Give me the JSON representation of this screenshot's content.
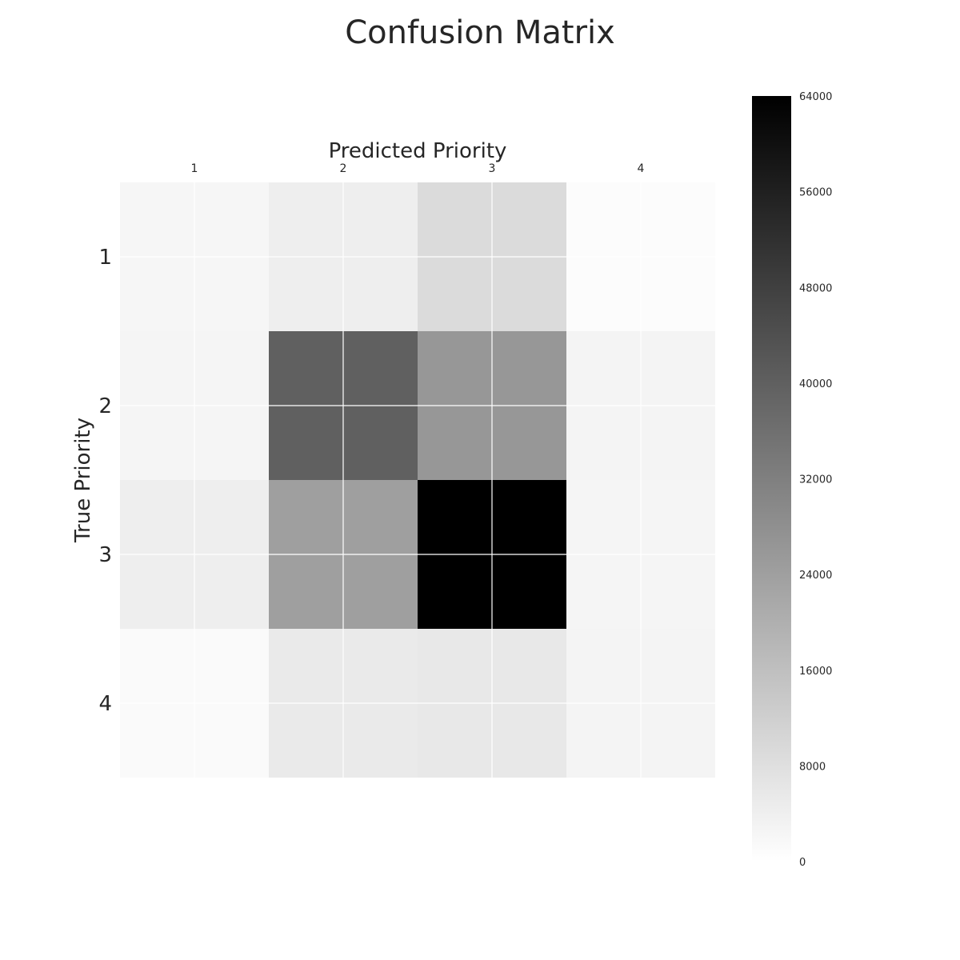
{
  "chart_data": {
    "type": "heatmap",
    "title": "Confusion Matrix",
    "xlabel": "Predicted Priority",
    "ylabel": "True Priority",
    "x_categories": [
      "1",
      "2",
      "3",
      "4"
    ],
    "y_categories": [
      "1",
      "2",
      "3",
      "4"
    ],
    "values": [
      [
        2300,
        4200,
        9000,
        800
      ],
      [
        2500,
        40000,
        26000,
        2700
      ],
      [
        4200,
        24000,
        64000,
        2600
      ],
      [
        1300,
        5200,
        5800,
        2800
      ]
    ],
    "colorbar": {
      "min": 0,
      "max": 64000,
      "ticks": [
        "0",
        "8000",
        "16000",
        "24000",
        "32000",
        "40000",
        "48000",
        "56000",
        "64000"
      ],
      "colormap": "greys"
    },
    "grid": true
  }
}
